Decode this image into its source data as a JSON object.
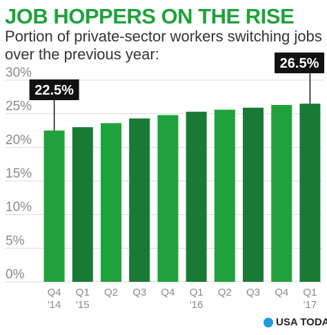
{
  "chart_data": {
    "type": "bar",
    "title": "JOB HOPPERS ON THE RISE",
    "subtitle": "Portion of private-sector workers switching jobs over the previous year:",
    "categories": [
      "Q4 '14",
      "Q1 '15",
      "Q2",
      "Q3",
      "Q4",
      "Q1 '16",
      "Q2",
      "Q3",
      "Q4",
      "Q1 '17"
    ],
    "x_tick_labels": [
      [
        "Q4",
        "'14"
      ],
      [
        "Q1",
        "'15"
      ],
      [
        "Q2"
      ],
      [
        "Q3"
      ],
      [
        "Q4"
      ],
      [
        "Q1",
        "'16"
      ],
      [
        "Q2"
      ],
      [
        "Q3"
      ],
      [
        "Q4"
      ],
      [
        "Q1",
        "'17"
      ]
    ],
    "values": [
      22.5,
      23.0,
      23.6,
      24.3,
      24.8,
      25.3,
      25.6,
      25.9,
      26.3,
      26.5
    ],
    "annotations": [
      {
        "index": 0,
        "text": "22.5%"
      },
      {
        "index": 9,
        "text": "26.5%"
      }
    ],
    "y_ticks": [
      "0%",
      "5%",
      "10%",
      "15%",
      "20%",
      "25%",
      "30%"
    ],
    "ylim": [
      0,
      30
    ],
    "grid": true,
    "colors": {
      "bar_light": "#1fa23c",
      "bar_dark": "#197a36",
      "title": "#1fa23c",
      "grid": "#d9d9d9",
      "axis_text": "#888888",
      "callout_bg": "#111111",
      "callout_text": "#ffffff"
    }
  },
  "footer": {
    "logo_text": "USA TODAY",
    "logo_icon": "usa-today-dot-icon",
    "logo_color": "#1f9bde"
  }
}
